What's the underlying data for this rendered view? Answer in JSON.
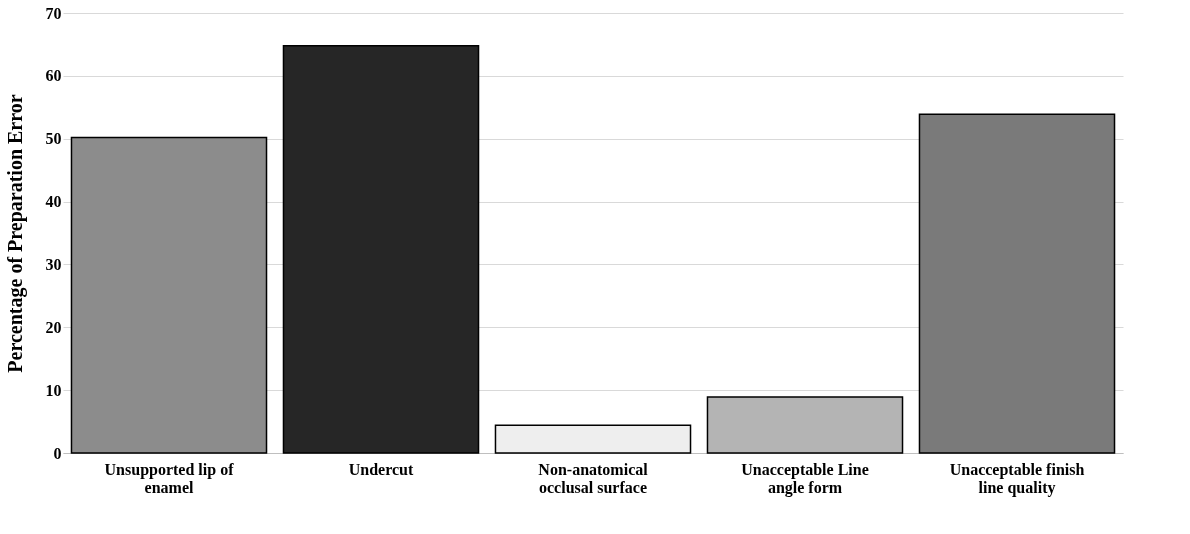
{
  "chart_data": {
    "type": "bar",
    "ylabel": "Percentage of  Preparation Error",
    "categories": [
      "Unsupported lip of enamel",
      "Undercut",
      "Non-anatomical occlusal surface",
      "Unacceptable Line angle form",
      "Unacceptable finish line quality"
    ],
    "values": [
      50.2,
      64.8,
      4.4,
      8.9,
      53.9
    ],
    "colors": [
      "#8c8c8c",
      "#262626",
      "#eeeeee",
      "#b4b4b4",
      "#7a7a7a"
    ],
    "ylim": [
      0,
      70
    ],
    "yticks": [
      0,
      10,
      20,
      30,
      40,
      50,
      60,
      70
    ],
    "grid": "y"
  }
}
